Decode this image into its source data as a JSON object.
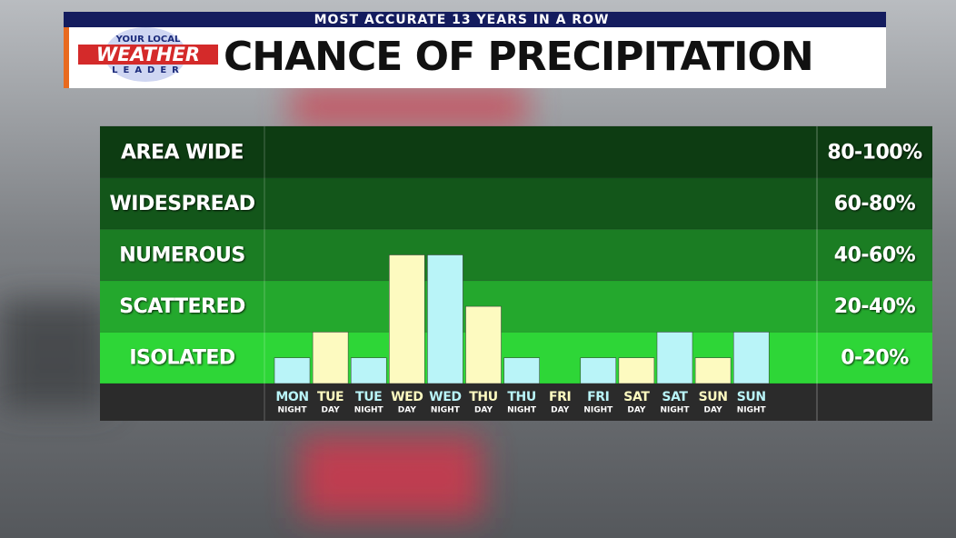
{
  "chart_data": {
    "type": "bar",
    "subtitle": "MOST ACCURATE 13 YEARS IN A ROW",
    "title": "CHANCE OF PRECIPITATION",
    "branding": [
      "YOUR LOCAL",
      "WEATHER",
      "LEADER"
    ],
    "categories": [
      "MON",
      "TUE",
      "TUE",
      "WED",
      "WED",
      "THU",
      "THU",
      "FRI",
      "FRI",
      "SAT",
      "SAT",
      "SUN",
      "SUN"
    ],
    "periods": [
      "NIGHT",
      "DAY",
      "NIGHT",
      "DAY",
      "NIGHT",
      "DAY",
      "NIGHT",
      "DAY",
      "NIGHT",
      "DAY",
      "NIGHT",
      "DAY",
      "NIGHT"
    ],
    "values": [
      10,
      20,
      10,
      50,
      50,
      30,
      10,
      0,
      10,
      10,
      20,
      10,
      20
    ],
    "colors": [
      "#b9f4f8",
      "#fdfac0",
      "#b9f4f8",
      "#fdfac0",
      "#b9f4f8",
      "#fdfac0",
      "#b9f4f8",
      "#fdfac0",
      "#b9f4f8",
      "#fdfac0",
      "#b9f4f8",
      "#fdfac0",
      "#b9f4f8"
    ],
    "label_colors": [
      "#b9f4f8",
      "#fdfac0",
      "#b9f4f8",
      "#fdfac0",
      "#b9f4f8",
      "#fdfac0",
      "#b9f4f8",
      "#fdfac0",
      "#b9f4f8",
      "#fdfac0",
      "#b9f4f8",
      "#fdfac0",
      "#b9f4f8"
    ],
    "ylim": [
      0,
      100
    ],
    "yticks": [
      0,
      20,
      40,
      60,
      80,
      100
    ],
    "bands": [
      {
        "label": "ISOLATED",
        "range": "0-20%",
        "color": "#2ed637"
      },
      {
        "label": "SCATTERED",
        "range": "20-40%",
        "color": "#24a82d"
      },
      {
        "label": "NUMEROUS",
        "range": "40-60%",
        "color": "#1b7d23"
      },
      {
        "label": "WIDESPREAD",
        "range": "60-80%",
        "color": "#13561a"
      },
      {
        "label": "AREA WIDE",
        "range": "80-100%",
        "color": "#0d3c12"
      }
    ]
  }
}
